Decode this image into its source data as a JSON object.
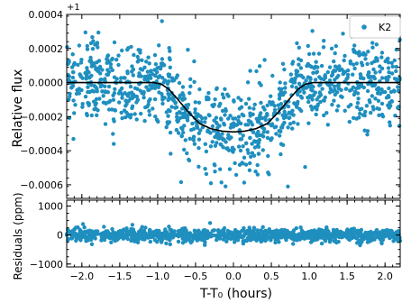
{
  "chart_data": [
    {
      "type": "scatter",
      "panel": "top",
      "xlabel": "T-T₀ (hours)",
      "ylabel": "Relative flux",
      "y_offset_label": "+1",
      "xlim": [
        -2.2,
        2.2
      ],
      "ylim": [
        -0.00068,
        0.0004
      ],
      "x_ticks": [
        -2.0,
        -1.5,
        -1.0,
        -0.5,
        0.0,
        0.5,
        1.0,
        1.5,
        2.0
      ],
      "y_ticks": [
        -0.0006,
        -0.0004,
        -0.0002,
        0.0,
        0.0002,
        0.0004
      ],
      "y_tick_labels": [
        "−0.0006",
        "−0.0004",
        "−0.0002",
        "0.0000",
        "0.0002",
        "0.0004"
      ],
      "legend": {
        "entries": [
          "K2"
        ],
        "placement": "top-right"
      },
      "grid": false,
      "series": [
        {
          "name": "K2",
          "kind": "scatter",
          "color": "#1f8fbf",
          "point_count": 1100,
          "scatter_sigma": 0.00012,
          "description_model": "transit"
        },
        {
          "kind": "model-line",
          "color": "#000000",
          "x": [
            -2.2,
            -1.05,
            -0.95,
            -0.85,
            -0.75,
            -0.6,
            -0.45,
            -0.3,
            -0.15,
            0.0,
            0.15,
            0.3,
            0.45,
            0.6,
            0.75,
            0.85,
            0.95,
            1.05,
            2.2
          ],
          "y": [
            0.0,
            0.0,
            -1e-05,
            -4e-05,
            -9e-05,
            -0.00017,
            -0.00024,
            -0.00027,
            -0.000285,
            -0.00029,
            -0.000285,
            -0.00027,
            -0.00024,
            -0.00017,
            -9e-05,
            -4e-05,
            -1e-05,
            0.0,
            0.0
          ]
        }
      ]
    },
    {
      "type": "scatter",
      "panel": "bottom",
      "xlabel": "T-T₀ (hours)",
      "ylabel": "Residuals (ppm)",
      "xlim": [
        -2.2,
        2.2
      ],
      "ylim": [
        -1100,
        1200
      ],
      "x_ticks": [
        -2.0,
        -1.5,
        -1.0,
        -0.5,
        0.0,
        0.5,
        1.0,
        1.5,
        2.0
      ],
      "x_tick_labels": [
        "−2.0",
        "−1.5",
        "−1.0",
        "−0.5",
        "0.0",
        "0.5",
        "1.0",
        "1.5",
        "2.0"
      ],
      "y_ticks": [
        -1000,
        0,
        1000
      ],
      "y_tick_labels": [
        "−1000",
        "0",
        "1000"
      ],
      "grid": false,
      "series": [
        {
          "kind": "scatter",
          "color": "#1f8fbf",
          "point_count": 1100,
          "scatter_sigma": 110
        }
      ]
    }
  ]
}
